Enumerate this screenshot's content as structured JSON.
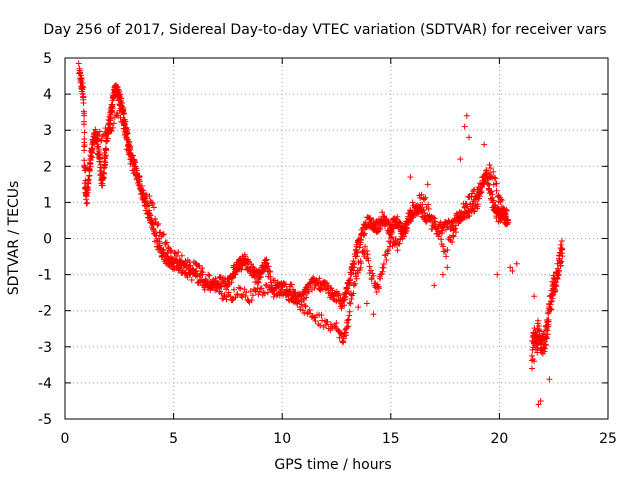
{
  "chart_data": {
    "type": "scatter",
    "title": "Day 256 of 2017, Sidereal Day-to-day VTEC variation (SDTVAR) for receiver vars",
    "xlabel": "GPS time / hours",
    "ylabel": "SDTVAR / TECUs",
    "xlim": [
      0,
      25
    ],
    "ylim": [
      -5,
      5
    ],
    "x_ticks": [
      0,
      5,
      10,
      15,
      20,
      25
    ],
    "y_ticks": [
      -5,
      -4,
      -3,
      -2,
      -1,
      0,
      1,
      2,
      3,
      4,
      5
    ],
    "grid": true,
    "marker": "+",
    "series": [
      {
        "name": "SDTVAR",
        "color": "#ff0000",
        "trace": [
          [
            0.65,
            4.7
          ],
          [
            0.75,
            4.3
          ],
          [
            0.85,
            4.0
          ],
          [
            0.9,
            2.2
          ],
          [
            0.95,
            1.3
          ],
          [
            1.0,
            1.1
          ],
          [
            1.1,
            1.8
          ],
          [
            1.2,
            2.3
          ],
          [
            1.3,
            2.7
          ],
          [
            1.4,
            2.9
          ],
          [
            1.5,
            2.5
          ],
          [
            1.6,
            2.2
          ],
          [
            1.7,
            1.5
          ],
          [
            1.8,
            2.0
          ],
          [
            1.9,
            2.6
          ],
          [
            2.0,
            3.1
          ],
          [
            2.1,
            3.4
          ],
          [
            2.2,
            3.8
          ],
          [
            2.3,
            4.2
          ],
          [
            2.4,
            4.1
          ],
          [
            2.5,
            3.9
          ],
          [
            2.6,
            3.7
          ],
          [
            2.7,
            3.4
          ],
          [
            2.8,
            3.0
          ],
          [
            2.9,
            2.7
          ],
          [
            3.0,
            2.4
          ],
          [
            3.2,
            2.0
          ],
          [
            3.4,
            1.6
          ],
          [
            3.6,
            1.2
          ],
          [
            3.8,
            0.8
          ],
          [
            4.0,
            0.4
          ],
          [
            4.2,
            0.0
          ],
          [
            4.4,
            -0.3
          ],
          [
            4.6,
            -0.5
          ],
          [
            4.8,
            -0.6
          ],
          [
            5.0,
            -0.7
          ],
          [
            5.3,
            -0.8
          ],
          [
            5.6,
            -0.9
          ],
          [
            5.9,
            -1.0
          ],
          [
            6.2,
            -1.1
          ],
          [
            6.5,
            -1.3
          ],
          [
            6.8,
            -1.3
          ],
          [
            7.1,
            -1.2
          ],
          [
            7.4,
            -1.3
          ],
          [
            7.7,
            -1.0
          ],
          [
            7.9,
            -0.8
          ],
          [
            8.1,
            -0.7
          ],
          [
            8.3,
            -0.6
          ],
          [
            8.5,
            -0.8
          ],
          [
            8.7,
            -1.0
          ],
          [
            8.9,
            -1.1
          ],
          [
            9.1,
            -0.8
          ],
          [
            9.3,
            -0.7
          ],
          [
            9.5,
            -1.3
          ],
          [
            9.8,
            -1.3
          ],
          [
            10.1,
            -1.4
          ],
          [
            10.4,
            -1.6
          ],
          [
            10.7,
            -1.7
          ],
          [
            11.0,
            -1.6
          ],
          [
            11.3,
            -1.3
          ],
          [
            11.6,
            -1.2
          ],
          [
            11.9,
            -1.3
          ],
          [
            12.2,
            -1.5
          ],
          [
            12.5,
            -1.6
          ],
          [
            12.8,
            -1.8
          ],
          [
            13.0,
            -1.4
          ],
          [
            13.2,
            -0.9
          ],
          [
            13.4,
            -0.4
          ],
          [
            13.6,
            0.0
          ],
          [
            13.8,
            0.3
          ],
          [
            14.0,
            0.5
          ],
          [
            14.2,
            0.4
          ],
          [
            14.4,
            0.3
          ],
          [
            14.6,
            0.6
          ],
          [
            14.8,
            0.4
          ],
          [
            15.0,
            0.2
          ],
          [
            15.2,
            0.5
          ],
          [
            15.4,
            0.4
          ],
          [
            15.6,
            0.2
          ],
          [
            15.8,
            0.5
          ],
          [
            16.0,
            0.7
          ],
          [
            16.3,
            0.8
          ],
          [
            16.6,
            0.6
          ],
          [
            16.9,
            0.4
          ],
          [
            17.2,
            0.2
          ],
          [
            17.5,
            0.4
          ],
          [
            17.8,
            0.3
          ],
          [
            18.1,
            0.6
          ],
          [
            18.4,
            0.7
          ],
          [
            18.7,
            0.8
          ],
          [
            19.0,
            1.0
          ],
          [
            19.2,
            1.5
          ],
          [
            19.4,
            1.8
          ],
          [
            19.6,
            1.2
          ],
          [
            19.8,
            0.8
          ],
          [
            20.0,
            0.6
          ],
          [
            20.2,
            0.8
          ],
          [
            20.4,
            0.5
          ]
        ],
        "trace_b": [
          [
            1.5,
            2.8
          ],
          [
            2.0,
            3.0
          ],
          [
            2.5,
            3.5
          ],
          [
            3.0,
            2.2
          ],
          [
            3.5,
            1.4
          ],
          [
            4.0,
            0.9
          ],
          [
            4.5,
            0.0
          ],
          [
            5.0,
            -0.5
          ],
          [
            5.5,
            -0.6
          ],
          [
            6.0,
            -0.8
          ],
          [
            6.5,
            -1.1
          ],
          [
            7.0,
            -1.4
          ],
          [
            7.5,
            -1.6
          ],
          [
            8.0,
            -1.5
          ],
          [
            8.5,
            -1.6
          ],
          [
            9.0,
            -1.4
          ],
          [
            9.5,
            -1.5
          ],
          [
            10.0,
            -1.4
          ],
          [
            10.5,
            -1.4
          ],
          [
            11.0,
            -2.0
          ],
          [
            11.5,
            -2.2
          ],
          [
            12.0,
            -2.3
          ],
          [
            12.5,
            -2.5
          ],
          [
            12.8,
            -2.8
          ],
          [
            13.0,
            -2.5
          ],
          [
            13.2,
            -1.5
          ],
          [
            13.5,
            -0.8
          ],
          [
            13.8,
            -0.3
          ],
          [
            14.1,
            -1.0
          ],
          [
            14.4,
            -1.5
          ],
          [
            14.7,
            -0.6
          ],
          [
            15.0,
            0.0
          ],
          [
            15.3,
            -0.2
          ],
          [
            15.6,
            0.1
          ],
          [
            16.0,
            0.9
          ],
          [
            16.5,
            1.1
          ],
          [
            17.0,
            0.4
          ],
          [
            17.5,
            -0.4
          ],
          [
            18.0,
            0.3
          ],
          [
            18.5,
            1.0
          ],
          [
            19.0,
            1.3
          ],
          [
            19.5,
            1.9
          ],
          [
            19.8,
            1.6
          ],
          [
            20.1,
            0.9
          ],
          [
            20.3,
            0.4
          ]
        ],
        "trace_c": [
          [
            21.5,
            -3.2
          ],
          [
            21.6,
            -2.7
          ],
          [
            21.7,
            -3.0
          ],
          [
            21.8,
            -2.5
          ],
          [
            21.9,
            -2.9
          ],
          [
            22.0,
            -3.0
          ],
          [
            22.1,
            -2.8
          ],
          [
            22.2,
            -2.4
          ],
          [
            22.3,
            -2.0
          ],
          [
            22.4,
            -1.6
          ],
          [
            22.5,
            -1.3
          ],
          [
            22.6,
            -1.1
          ],
          [
            22.7,
            -0.9
          ],
          [
            22.8,
            -0.6
          ],
          [
            22.9,
            -0.3
          ]
        ],
        "outliers": [
          [
            18.4,
            3.1
          ],
          [
            18.5,
            3.4
          ],
          [
            18.6,
            2.8
          ],
          [
            18.2,
            2.2
          ],
          [
            19.3,
            2.6
          ],
          [
            19.9,
            -1.0
          ],
          [
            20.6,
            -0.9
          ],
          [
            20.5,
            -0.8
          ],
          [
            21.8,
            -4.6
          ],
          [
            21.9,
            -4.5
          ],
          [
            21.6,
            -1.6
          ],
          [
            22.3,
            -3.9
          ],
          [
            21.5,
            -3.6
          ],
          [
            21.6,
            -3.4
          ],
          [
            14.2,
            -2.1
          ],
          [
            13.9,
            -1.8
          ],
          [
            13.5,
            -1.9
          ],
          [
            17.0,
            -1.3
          ],
          [
            17.6,
            -0.8
          ],
          [
            17.4,
            -1.0
          ],
          [
            16.7,
            1.5
          ],
          [
            15.9,
            1.7
          ],
          [
            20.8,
            -0.7
          ]
        ]
      }
    ]
  }
}
